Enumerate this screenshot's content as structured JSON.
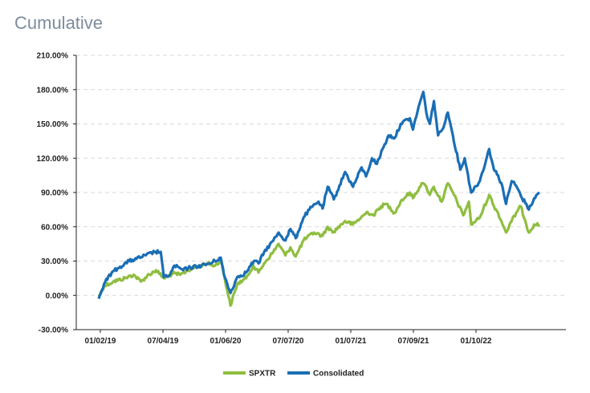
{
  "page": {
    "title": "Cumulative"
  },
  "colors": {
    "spxtr": "#8fbe3f",
    "consolidated": "#1a6eb5",
    "grid": "#d9d9d9",
    "axis": "#222222"
  },
  "chart_data": {
    "type": "line",
    "title": "",
    "xlabel": "",
    "ylabel": "",
    "ylim": [
      -30,
      210
    ],
    "yticks": [
      "210.00%",
      "180.00%",
      "150.00%",
      "120.00%",
      "90.00%",
      "60.00%",
      "30.00%",
      "0.00%",
      "-30.00%"
    ],
    "ytick_values": [
      210,
      180,
      150,
      120,
      90,
      60,
      30,
      0,
      -30
    ],
    "xticks": [
      "01/02/19",
      "07/04/19",
      "01/06/20",
      "07/07/20",
      "01/07/21",
      "07/09/21",
      "01/10/22"
    ],
    "grid": "horizontal dashed",
    "legend": "bottom-center",
    "series": [
      {
        "name": "SPXTR",
        "color": "#8fbe3f",
        "points": [
          [
            "2019-01-02",
            -1
          ],
          [
            "2019-01-20",
            8
          ],
          [
            "2019-02-20",
            12
          ],
          [
            "2019-04-01",
            15
          ],
          [
            "2019-04-30",
            18
          ],
          [
            "2019-05-25",
            12
          ],
          [
            "2019-06-15",
            17
          ],
          [
            "2019-07-15",
            22
          ],
          [
            "2019-08-10",
            15
          ],
          [
            "2019-09-10",
            19
          ],
          [
            "2019-10-05",
            18
          ],
          [
            "2019-11-01",
            22
          ],
          [
            "2019-12-01",
            25
          ],
          [
            "2020-01-02",
            28
          ],
          [
            "2020-01-31",
            26
          ],
          [
            "2020-02-19",
            31
          ],
          [
            "2020-03-01",
            18
          ],
          [
            "2020-03-23",
            -9
          ],
          [
            "2020-04-15",
            10
          ],
          [
            "2020-05-15",
            15
          ],
          [
            "2020-06-08",
            26
          ],
          [
            "2020-06-26",
            20
          ],
          [
            "2020-07-15",
            28
          ],
          [
            "2020-08-15",
            38
          ],
          [
            "2020-09-02",
            45
          ],
          [
            "2020-09-25",
            35
          ],
          [
            "2020-10-12",
            42
          ],
          [
            "2020-10-30",
            34
          ],
          [
            "2020-11-25",
            48
          ],
          [
            "2020-12-31",
            55
          ],
          [
            "2021-01-29",
            52
          ],
          [
            "2021-02-15",
            60
          ],
          [
            "2021-03-04",
            55
          ],
          [
            "2021-04-15",
            65
          ],
          [
            "2021-05-12",
            62
          ],
          [
            "2021-06-30",
            73
          ],
          [
            "2021-07-20",
            70
          ],
          [
            "2021-08-15",
            78
          ],
          [
            "2021-09-02",
            80
          ],
          [
            "2021-09-30",
            72
          ],
          [
            "2021-10-20",
            82
          ],
          [
            "2021-11-20",
            90
          ],
          [
            "2021-12-01",
            85
          ],
          [
            "2021-12-30",
            98
          ],
          [
            "2022-01-15",
            95
          ],
          [
            "2022-01-27",
            88
          ],
          [
            "2022-02-09",
            95
          ],
          [
            "2022-03-08",
            82
          ],
          [
            "2022-03-29",
            98
          ],
          [
            "2022-04-15",
            90
          ],
          [
            "2022-05-20",
            70
          ],
          [
            "2022-06-08",
            82
          ],
          [
            "2022-06-16",
            62
          ],
          [
            "2022-07-15",
            68
          ],
          [
            "2022-08-16",
            88
          ],
          [
            "2022-09-01",
            78
          ],
          [
            "2022-09-15",
            72
          ],
          [
            "2022-10-12",
            55
          ],
          [
            "2022-10-31",
            65
          ],
          [
            "2022-11-15",
            72
          ],
          [
            "2022-12-01",
            78
          ],
          [
            "2022-12-15",
            66
          ],
          [
            "2022-12-28",
            55
          ],
          [
            "2023-01-15",
            62
          ],
          [
            "2023-02-02",
            62
          ]
        ]
      },
      {
        "name": "Consolidated",
        "color": "#1a6eb5",
        "points": [
          [
            "2019-01-02",
            -3
          ],
          [
            "2019-01-20",
            10
          ],
          [
            "2019-02-15",
            20
          ],
          [
            "2019-03-15",
            25
          ],
          [
            "2019-04-15",
            30
          ],
          [
            "2019-05-10",
            32
          ],
          [
            "2019-06-10",
            35
          ],
          [
            "2019-07-10",
            38
          ],
          [
            "2019-07-31",
            38
          ],
          [
            "2019-08-10",
            16
          ],
          [
            "2019-09-01",
            18
          ],
          [
            "2019-09-15",
            26
          ],
          [
            "2019-10-15",
            22
          ],
          [
            "2019-11-01",
            24
          ],
          [
            "2019-12-15",
            26
          ],
          [
            "2020-01-15",
            28
          ],
          [
            "2020-02-19",
            33
          ],
          [
            "2020-03-01",
            18
          ],
          [
            "2020-03-23",
            2
          ],
          [
            "2020-04-15",
            16
          ],
          [
            "2020-05-15",
            20
          ],
          [
            "2020-06-10",
            30
          ],
          [
            "2020-06-26",
            28
          ],
          [
            "2020-07-15",
            38
          ],
          [
            "2020-08-15",
            48
          ],
          [
            "2020-09-02",
            55
          ],
          [
            "2020-09-25",
            48
          ],
          [
            "2020-10-12",
            58
          ],
          [
            "2020-10-30",
            50
          ],
          [
            "2020-11-25",
            68
          ],
          [
            "2020-12-15",
            75
          ],
          [
            "2021-01-15",
            82
          ],
          [
            "2021-01-29",
            76
          ],
          [
            "2021-02-15",
            95
          ],
          [
            "2021-03-08",
            84
          ],
          [
            "2021-04-15",
            108
          ],
          [
            "2021-05-12",
            95
          ],
          [
            "2021-06-10",
            112
          ],
          [
            "2021-06-25",
            104
          ],
          [
            "2021-07-15",
            120
          ],
          [
            "2021-08-01",
            115
          ],
          [
            "2021-08-20",
            128
          ],
          [
            "2021-09-10",
            140
          ],
          [
            "2021-10-01",
            138
          ],
          [
            "2021-10-20",
            150
          ],
          [
            "2021-11-20",
            155
          ],
          [
            "2021-12-01",
            145
          ],
          [
            "2021-12-20",
            165
          ],
          [
            "2022-01-05",
            178
          ],
          [
            "2022-01-15",
            160
          ],
          [
            "2022-01-27",
            150
          ],
          [
            "2022-02-10",
            170
          ],
          [
            "2022-02-24",
            140
          ],
          [
            "2022-03-10",
            145
          ],
          [
            "2022-03-29",
            160
          ],
          [
            "2022-04-15",
            140
          ],
          [
            "2022-05-10",
            110
          ],
          [
            "2022-05-25",
            120
          ],
          [
            "2022-06-16",
            90
          ],
          [
            "2022-07-15",
            100
          ],
          [
            "2022-08-16",
            128
          ],
          [
            "2022-09-01",
            110
          ],
          [
            "2022-09-15",
            105
          ],
          [
            "2022-09-30",
            95
          ],
          [
            "2022-10-12",
            80
          ],
          [
            "2022-10-31",
            100
          ],
          [
            "2022-11-15",
            96
          ],
          [
            "2022-12-05",
            85
          ],
          [
            "2022-12-20",
            80
          ],
          [
            "2022-12-28",
            75
          ],
          [
            "2023-01-15",
            85
          ],
          [
            "2023-02-02",
            90
          ]
        ]
      }
    ]
  }
}
